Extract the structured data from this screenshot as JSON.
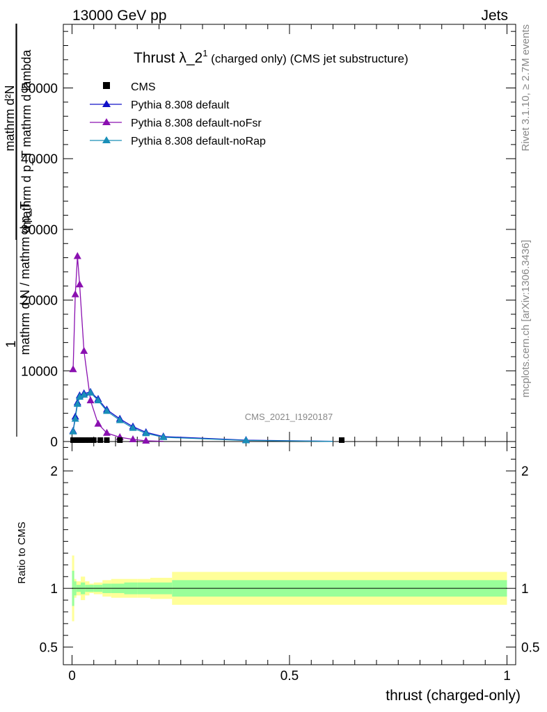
{
  "header": {
    "energy": "13000 GeV pp",
    "category": "Jets"
  },
  "title_main": "Thrust λ_2",
  "title_sup": "1",
  "title_rest": " (charged only) (CMS jet substructure)",
  "analysis_label": "CMS_2021_I1920187",
  "side_labels": {
    "rivet": "Rivet 3.1.10, ≥ 2.7M events",
    "mcplots": "mcplots.cern.ch [arXiv:1306.3436]"
  },
  "ylabel_upper": {
    "numerator": "mathrm d²N",
    "denominator": "mathrm d p_T mathrm d lambda",
    "overall_numerator": "1",
    "overall_denominator": "mathrm d N / mathrm d p_T"
  },
  "ylabel_lower": "Ratio to CMS",
  "xlabel": "thrust (charged-only)",
  "colors": {
    "data": "#000000",
    "default": "#1010c8",
    "noFsr": "#8a10b0",
    "noRap": "#1a8fb8",
    "band_inner": "#99ff99",
    "band_outer": "#ffff99"
  },
  "chart_data": [
    {
      "type": "line",
      "panel": "main",
      "xlim": [
        -0.02,
        1.02
      ],
      "ylim": [
        0,
        59000
      ],
      "yticks": [
        0,
        10000,
        20000,
        30000,
        40000,
        50000
      ],
      "ytick_labels": [
        "0",
        "10000",
        "20000",
        "30000",
        "40000",
        "50000"
      ],
      "legend_position": "top-left",
      "series": [
        {
          "name": "CMS",
          "style": "data",
          "x": [
            0.0025,
            0.0075,
            0.0125,
            0.0175,
            0.0225,
            0.03,
            0.04,
            0.05,
            0.065,
            0.08,
            0.11,
            0.62
          ],
          "y": [
            200,
            200,
            200,
            200,
            200,
            200,
            200,
            200,
            200,
            200,
            200,
            200
          ]
        },
        {
          "name": "Pythia 8.308 default",
          "style": "default",
          "x": [
            0.0025,
            0.0075,
            0.0125,
            0.0175,
            0.0275,
            0.0425,
            0.06,
            0.08,
            0.11,
            0.14,
            0.17,
            0.21,
            0.4,
            0.6
          ],
          "y": [
            1500,
            3500,
            5500,
            6500,
            6800,
            7000,
            6000,
            4500,
            3200,
            2100,
            1300,
            700,
            200,
            30
          ]
        },
        {
          "name": "Pythia 8.308 default-noFsr",
          "style": "noFsr",
          "x": [
            0.0025,
            0.0075,
            0.0125,
            0.0175,
            0.0275,
            0.0425,
            0.06,
            0.08,
            0.11,
            0.14,
            0.17,
            0.21
          ],
          "y": [
            10200,
            20800,
            26200,
            22200,
            12800,
            5800,
            2500,
            1200,
            600,
            300,
            100,
            40
          ]
        },
        {
          "name": "Pythia 8.308 default-noRap",
          "style": "noRap",
          "x": [
            0.0025,
            0.0075,
            0.0125,
            0.0175,
            0.0275,
            0.0425,
            0.06,
            0.08,
            0.11,
            0.14,
            0.17,
            0.21,
            0.4,
            0.6
          ],
          "y": [
            1400,
            3200,
            5300,
            6300,
            6600,
            6900,
            5800,
            4300,
            3000,
            1900,
            1150,
            600,
            150,
            20
          ]
        }
      ]
    },
    {
      "type": "area",
      "panel": "ratio",
      "xlim": [
        -0.02,
        1.02
      ],
      "ylim": [
        0.35,
        2.25
      ],
      "yticks": [
        0.5,
        1,
        2
      ],
      "ytick_labels": [
        "0.5",
        "1",
        "2"
      ],
      "xticks": [
        0,
        0.5,
        1
      ],
      "xtick_labels": [
        "0",
        "0.5",
        "1"
      ],
      "bins": [
        0.0,
        0.005,
        0.01,
        0.02,
        0.03,
        0.04,
        0.05,
        0.07,
        0.09,
        0.12,
        0.15,
        0.18,
        0.23,
        1.0
      ],
      "band_inner_halfwidth": [
        0.15,
        0.06,
        0.03,
        0.05,
        0.03,
        0.03,
        0.03,
        0.04,
        0.04,
        0.05,
        0.05,
        0.05,
        0.07
      ],
      "band_outer_halfwidth": [
        0.28,
        0.08,
        0.06,
        0.1,
        0.06,
        0.04,
        0.05,
        0.07,
        0.08,
        0.08,
        0.08,
        0.09,
        0.14
      ],
      "reference_line": 1
    }
  ]
}
